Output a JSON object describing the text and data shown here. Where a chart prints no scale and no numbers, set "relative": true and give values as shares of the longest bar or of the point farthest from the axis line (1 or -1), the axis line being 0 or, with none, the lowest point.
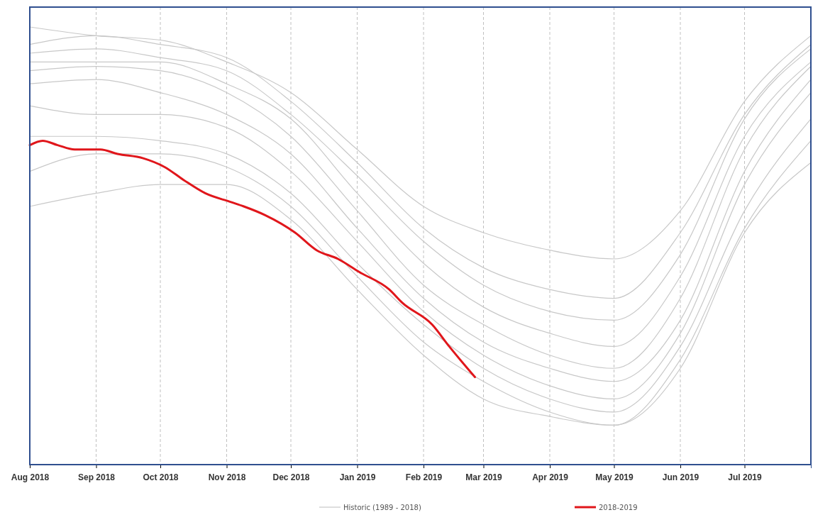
{
  "chart_data": {
    "type": "line",
    "relative": true,
    "grid": "x",
    "legend": "bottom",
    "x": [
      "2018-08-01",
      "2018-09-01",
      "2018-10-01",
      "2018-11-01",
      "2018-12-01",
      "2019-01-01",
      "2019-02-01",
      "2019-03-01",
      "2019-04-01",
      "2019-05-01",
      "2019-06-01",
      "2019-07-01",
      "2019-08-01"
    ],
    "xlim": [
      "2018-08-01",
      "2019-08-01"
    ],
    "xticks": [
      {
        "value": "2018-08-01",
        "label": "Aug 2018"
      },
      {
        "value": "2018-09-01",
        "label": "Sep 2018"
      },
      {
        "value": "2018-10-01",
        "label": "Oct 2018"
      },
      {
        "value": "2018-11-01",
        "label": "Nov 2018"
      },
      {
        "value": "2018-12-01",
        "label": "Dec 2018"
      },
      {
        "value": "2019-01-01",
        "label": "Jan 2019"
      },
      {
        "value": "2019-02-01",
        "label": "Feb 2019"
      },
      {
        "value": "2019-03-01",
        "label": "Mar 2019"
      },
      {
        "value": "2019-04-01",
        "label": "Apr 2019"
      },
      {
        "value": "2019-05-01",
        "label": "May 2019"
      },
      {
        "value": "2019-06-01",
        "label": "Jun 2019"
      },
      {
        "value": "2019-07-01",
        "label": "Jul 2019"
      }
    ],
    "series": [
      {
        "name": "Historic (1989 - 2018)",
        "color": "#c8c8c8",
        "values": [
          1.0,
          0.98,
          0.97,
          0.92,
          0.85,
          0.72,
          0.59,
          0.53,
          0.49,
          0.47,
          0.58,
          0.83,
          0.98
        ]
      },
      {
        "color": "#c8c8c8",
        "values": [
          0.96,
          0.98,
          0.96,
          0.93,
          0.83,
          0.69,
          0.54,
          0.45,
          0.4,
          0.38,
          0.53,
          0.8,
          0.96
        ]
      },
      {
        "color": "#c8c8c8",
        "values": [
          0.94,
          0.95,
          0.93,
          0.9,
          0.8,
          0.66,
          0.51,
          0.41,
          0.35,
          0.33,
          0.48,
          0.79,
          0.95
        ]
      },
      {
        "color": "#c8c8c8",
        "values": [
          0.92,
          0.92,
          0.92,
          0.87,
          0.79,
          0.62,
          0.46,
          0.36,
          0.3,
          0.27,
          0.43,
          0.75,
          0.92
        ]
      },
      {
        "color": "#c8c8c8",
        "values": [
          0.9,
          0.91,
          0.9,
          0.85,
          0.75,
          0.58,
          0.41,
          0.32,
          0.25,
          0.22,
          0.38,
          0.72,
          0.91
        ]
      },
      {
        "color": "#c8c8c8",
        "values": [
          0.87,
          0.88,
          0.85,
          0.8,
          0.71,
          0.54,
          0.38,
          0.28,
          0.22,
          0.19,
          0.33,
          0.67,
          0.88
        ]
      },
      {
        "color": "#c8c8c8",
        "values": [
          0.82,
          0.8,
          0.8,
          0.77,
          0.67,
          0.51,
          0.35,
          0.25,
          0.18,
          0.15,
          0.3,
          0.64,
          0.85
        ]
      },
      {
        "color": "#c8c8c8",
        "values": [
          0.75,
          0.75,
          0.74,
          0.71,
          0.62,
          0.46,
          0.32,
          0.22,
          0.15,
          0.12,
          0.27,
          0.58,
          0.79
        ]
      },
      {
        "color": "#c8c8c8",
        "values": [
          0.67,
          0.71,
          0.71,
          0.68,
          0.59,
          0.43,
          0.28,
          0.19,
          0.12,
          0.09,
          0.24,
          0.54,
          0.74
        ]
      },
      {
        "color": "#c8c8c8",
        "values": [
          0.59,
          0.62,
          0.64,
          0.64,
          0.56,
          0.4,
          0.25,
          0.15,
          0.11,
          0.09,
          0.22,
          0.53,
          0.69
        ]
      },
      {
        "name": "2018-2019",
        "color": "#e0161b",
        "x": [
          "2018-08-01",
          "2018-08-07",
          "2018-08-14",
          "2018-08-22",
          "2018-09-03",
          "2018-09-11",
          "2018-09-23",
          "2018-10-03",
          "2018-10-12",
          "2018-10-22",
          "2018-11-03",
          "2018-11-09",
          "2018-11-19",
          "2018-12-03",
          "2018-12-13",
          "2018-12-23",
          "2019-01-02",
          "2019-01-16",
          "2019-01-22",
          "2019-02-05",
          "2019-02-13",
          "2019-02-25"
        ],
        "values": [
          0.73,
          0.74,
          0.73,
          0.72,
          0.72,
          0.71,
          0.7,
          0.68,
          0.65,
          0.62,
          0.6,
          0.59,
          0.57,
          0.53,
          0.49,
          0.47,
          0.44,
          0.4,
          0.37,
          0.32,
          0.27,
          0.2
        ]
      }
    ]
  }
}
